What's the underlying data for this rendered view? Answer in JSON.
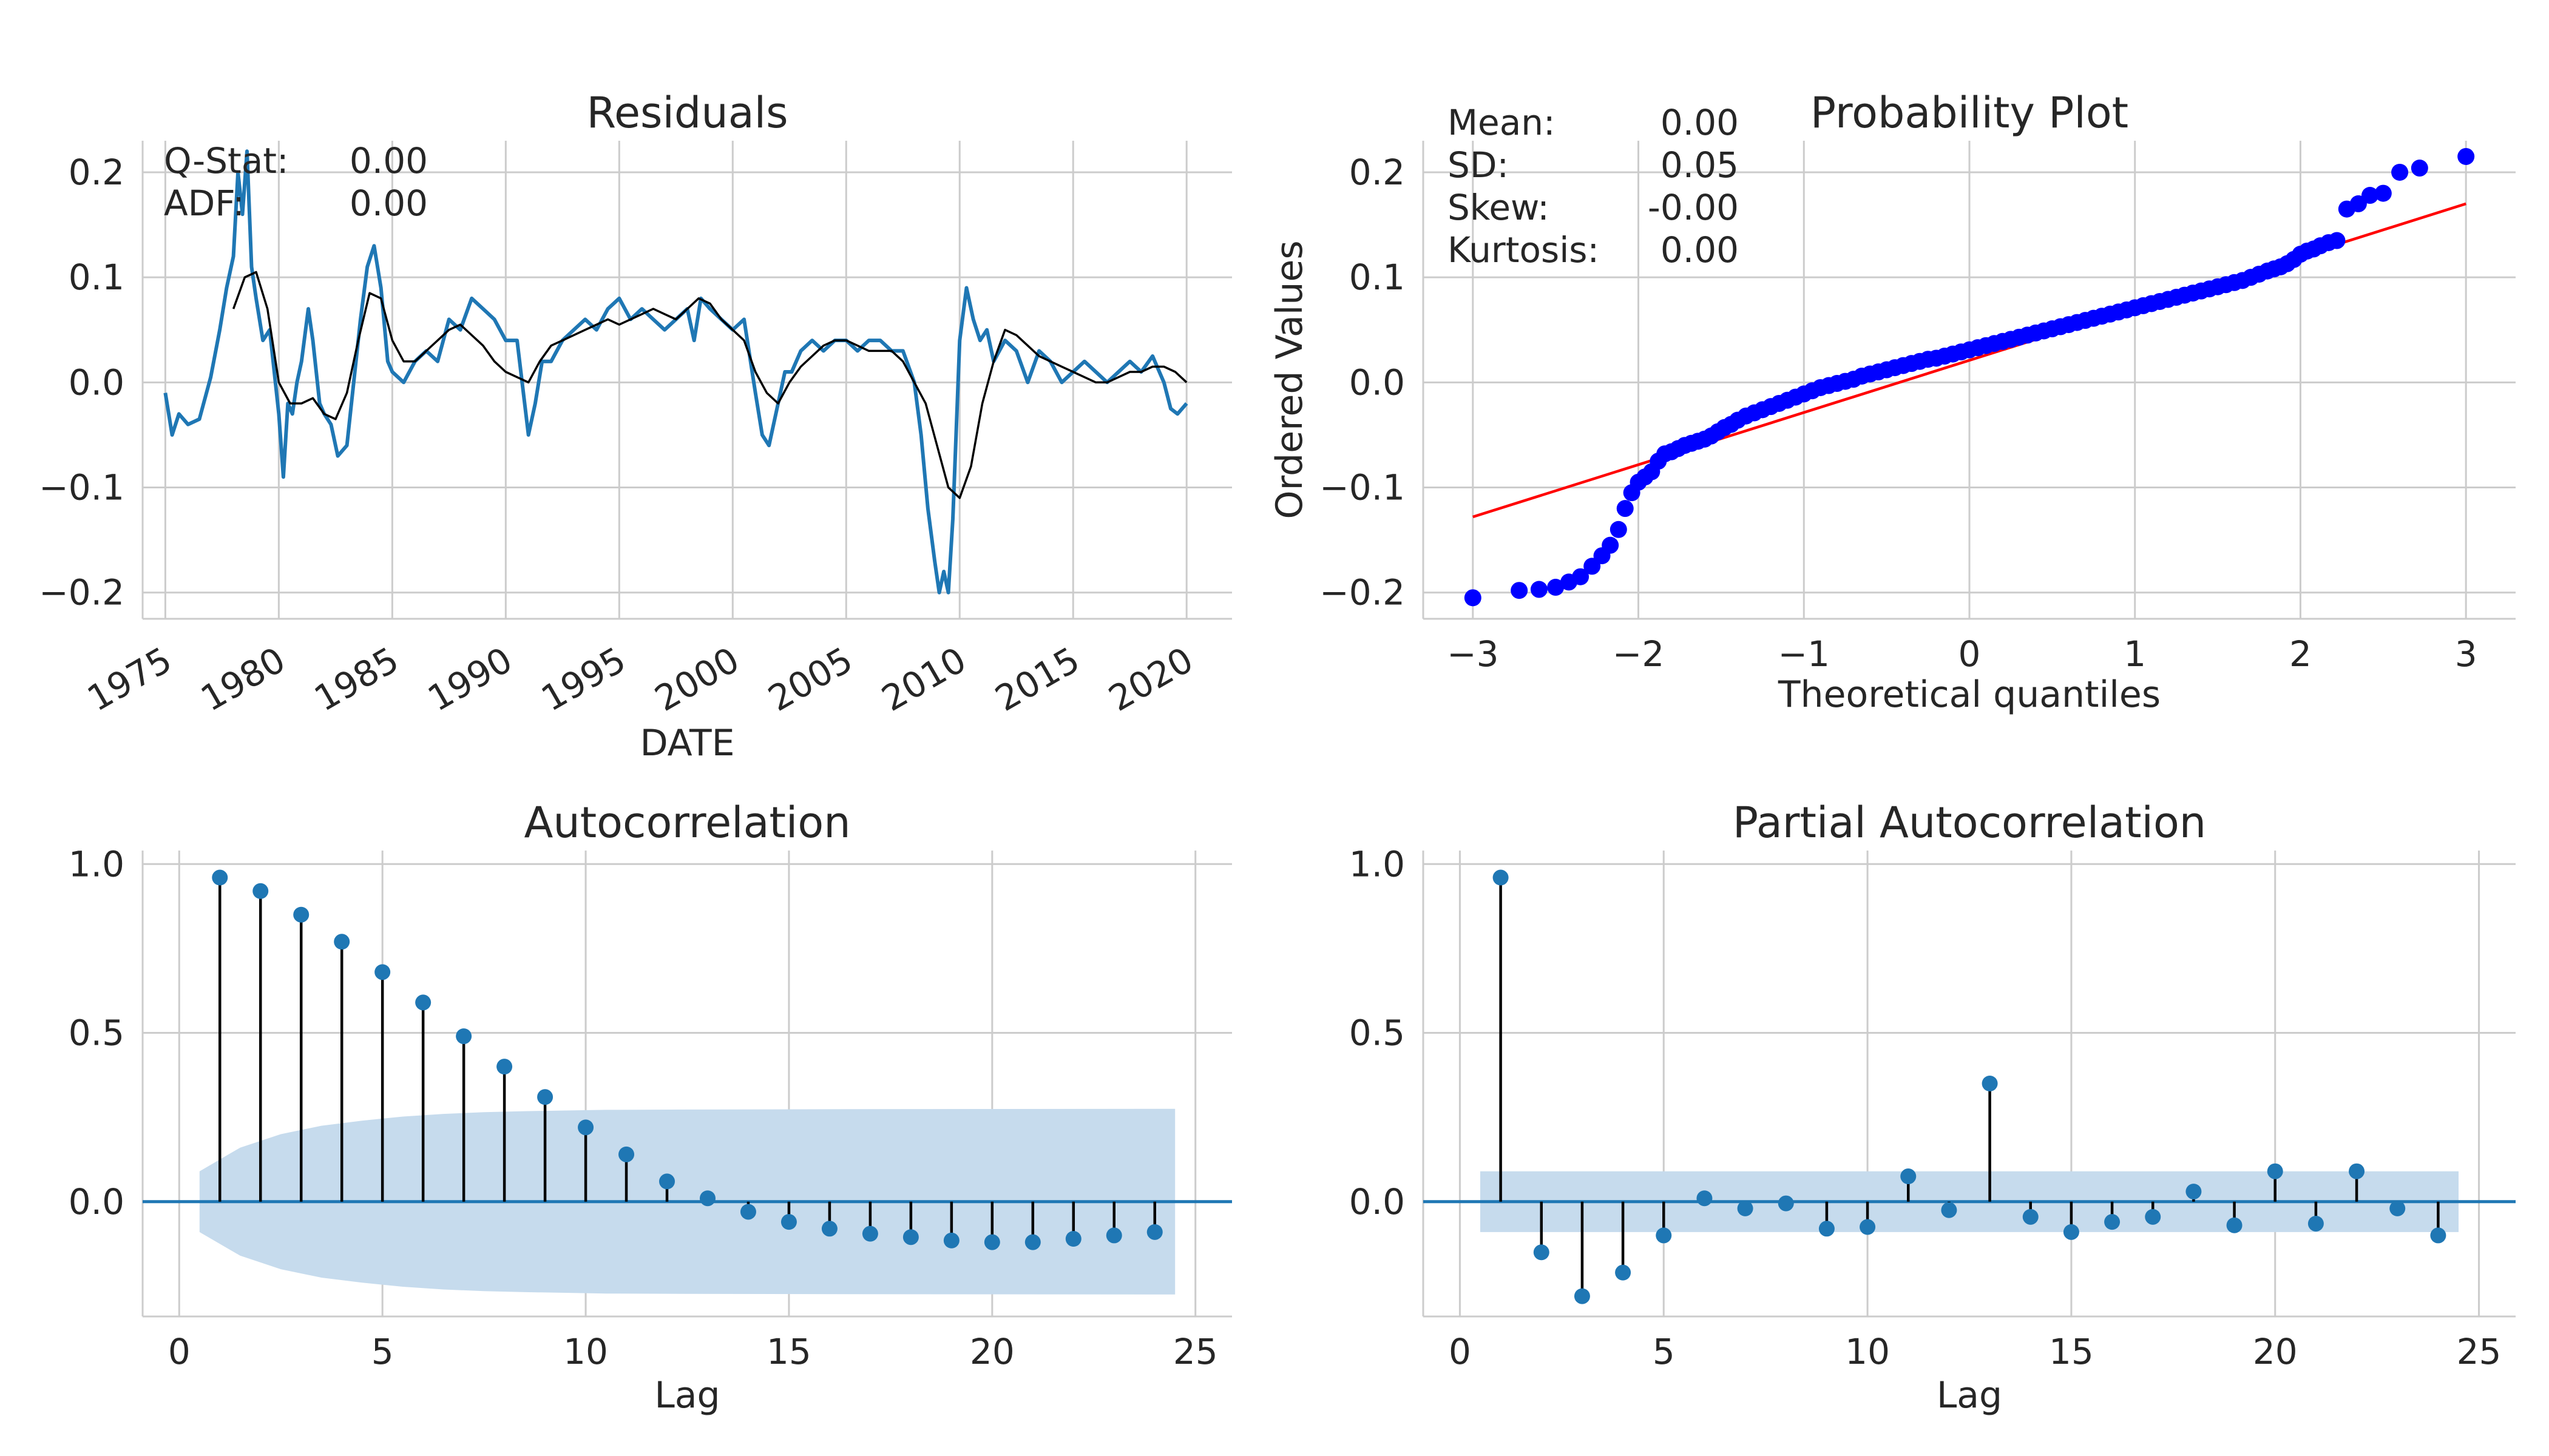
{
  "colors": {
    "series": "#1f77b4",
    "smooth": "#000000",
    "qq_points": "#0000ff",
    "qq_line": "#ff0000",
    "stem": "#000000",
    "band": "#c6dbed",
    "grid": "#cccccc",
    "axis": "#cccccc"
  },
  "chart_data": [
    {
      "type": "line",
      "title": "Residuals",
      "xlabel": "DATE",
      "ylabel": "",
      "xlim": [
        1974.0,
        2022.0
      ],
      "ylim": [
        -0.225,
        0.23
      ],
      "x_ticks": [
        1975,
        1980,
        1985,
        1990,
        1995,
        2000,
        2005,
        2010,
        2015,
        2020
      ],
      "x_tick_labels": [
        "1975",
        "1980",
        "1985",
        "1990",
        "1995",
        "2000",
        "2005",
        "2010",
        "2015",
        "2020"
      ],
      "y_ticks": [
        -0.2,
        -0.1,
        0.0,
        0.1,
        0.2
      ],
      "y_tick_labels": [
        "−0.2",
        "−0.1",
        "0.0",
        "0.1",
        "0.2"
      ],
      "grid": true,
      "annotations": [
        {
          "label": "Q-Stat:",
          "value": "0.00"
        },
        {
          "label": "ADF:",
          "value": "0.00"
        }
      ],
      "series": [
        {
          "values_x": [
            1975.0,
            1975.3,
            1975.6,
            1976.0,
            1976.5,
            1977.0,
            1977.4,
            1977.7,
            1978.0,
            1978.2,
            1978.4,
            1978.6,
            1978.8,
            1979.0,
            1979.3,
            1979.6,
            1980.0,
            1980.2,
            1980.4,
            1980.6,
            1980.8,
            1981.0,
            1981.3,
            1981.5,
            1981.8,
            1982.0,
            1982.3,
            1982.6,
            1983.0,
            1983.3,
            1983.6,
            1983.9,
            1984.2,
            1984.5,
            1984.8,
            1985.0,
            1985.5,
            1986.0,
            1986.5,
            1987.0,
            1987.5,
            1988.0,
            1988.5,
            1989.0,
            1989.5,
            1990.0,
            1990.5,
            1991.0,
            1991.3,
            1991.6,
            1992.0,
            1992.5,
            1993.0,
            1993.5,
            1994.0,
            1994.5,
            1995.0,
            1995.5,
            1996.0,
            1996.5,
            1997.0,
            1997.5,
            1998.0,
            1998.3,
            1998.6,
            1999.0,
            1999.5,
            2000.0,
            2000.5,
            2001.0,
            2001.3,
            2001.6,
            2002.0,
            2002.3,
            2002.6,
            2003.0,
            2003.5,
            2004.0,
            2004.5,
            2005.0,
            2005.5,
            2006.0,
            2006.5,
            2007.0,
            2007.5,
            2008.0,
            2008.3,
            2008.6,
            2008.9,
            2009.1,
            2009.3,
            2009.5,
            2009.7,
            2010.0,
            2010.3,
            2010.6,
            2010.9,
            2011.2,
            2011.5,
            2012.0,
            2012.5,
            2013.0,
            2013.5,
            2014.0,
            2014.5,
            2015.0,
            2015.5,
            2016.0,
            2016.5,
            2017.0,
            2017.5,
            2018.0,
            2018.5,
            2019.0,
            2019.3,
            2019.6,
            2020.0
          ],
          "values_y": [
            -0.01,
            -0.05,
            -0.03,
            -0.04,
            -0.035,
            0.005,
            0.05,
            0.09,
            0.12,
            0.2,
            0.16,
            0.22,
            0.11,
            0.08,
            0.04,
            0.05,
            -0.03,
            -0.09,
            -0.02,
            -0.03,
            0.0,
            0.02,
            0.07,
            0.04,
            -0.02,
            -0.03,
            -0.04,
            -0.07,
            -0.06,
            0.0,
            0.06,
            0.11,
            0.13,
            0.09,
            0.02,
            0.01,
            0.0,
            0.02,
            0.03,
            0.02,
            0.06,
            0.05,
            0.08,
            0.07,
            0.06,
            0.04,
            0.04,
            -0.05,
            -0.02,
            0.02,
            0.02,
            0.04,
            0.05,
            0.06,
            0.05,
            0.07,
            0.08,
            0.06,
            0.07,
            0.06,
            0.05,
            0.06,
            0.07,
            0.04,
            0.08,
            0.07,
            0.06,
            0.05,
            0.06,
            -0.01,
            -0.05,
            -0.06,
            -0.02,
            0.01,
            0.01,
            0.03,
            0.04,
            0.03,
            0.04,
            0.04,
            0.03,
            0.04,
            0.04,
            0.03,
            0.03,
            0.0,
            -0.05,
            -0.12,
            -0.17,
            -0.2,
            -0.18,
            -0.2,
            -0.13,
            0.04,
            0.09,
            0.06,
            0.04,
            0.05,
            0.02,
            0.04,
            0.03,
            0.0,
            0.03,
            0.02,
            0.0,
            0.01,
            0.02,
            0.01,
            0.0,
            0.01,
            0.02,
            0.01,
            0.025,
            0.0,
            -0.025,
            -0.03,
            -0.02
          ]
        },
        {
          "values_x": [
            1978.0,
            1978.5,
            1979.0,
            1979.5,
            1980.0,
            1980.5,
            1981.0,
            1981.5,
            1982.0,
            1982.5,
            1983.0,
            1983.5,
            1984.0,
            1984.5,
            1985.0,
            1985.5,
            1986.0,
            1986.5,
            1987.0,
            1987.5,
            1988.0,
            1988.5,
            1989.0,
            1989.5,
            1990.0,
            1990.5,
            1991.0,
            1991.5,
            1992.0,
            1992.5,
            1993.0,
            1993.5,
            1994.0,
            1994.5,
            1995.0,
            1995.5,
            1996.0,
            1996.5,
            1997.0,
            1997.5,
            1998.0,
            1998.5,
            1999.0,
            1999.5,
            2000.0,
            2000.5,
            2001.0,
            2001.5,
            2002.0,
            2002.5,
            2003.0,
            2003.5,
            2004.0,
            2004.5,
            2005.0,
            2005.5,
            2006.0,
            2006.5,
            2007.0,
            2007.5,
            2008.0,
            2008.5,
            2009.0,
            2009.5,
            2010.0,
            2010.5,
            2011.0,
            2011.5,
            2012.0,
            2012.5,
            2013.0,
            2013.5,
            2014.0,
            2014.5,
            2015.0,
            2015.5,
            2016.0,
            2016.5,
            2017.0,
            2017.5,
            2018.0,
            2018.5,
            2019.0,
            2019.5,
            2020.0
          ],
          "values_y": [
            0.07,
            0.1,
            0.105,
            0.07,
            0.0,
            -0.02,
            -0.02,
            -0.015,
            -0.03,
            -0.035,
            -0.01,
            0.04,
            0.085,
            0.08,
            0.04,
            0.02,
            0.02,
            0.03,
            0.04,
            0.05,
            0.055,
            0.045,
            0.035,
            0.02,
            0.01,
            0.005,
            0.0,
            0.02,
            0.035,
            0.04,
            0.045,
            0.05,
            0.055,
            0.06,
            0.055,
            0.06,
            0.065,
            0.07,
            0.065,
            0.06,
            0.07,
            0.08,
            0.075,
            0.06,
            0.05,
            0.04,
            0.01,
            -0.01,
            -0.02,
            0.0,
            0.015,
            0.025,
            0.035,
            0.04,
            0.04,
            0.035,
            0.03,
            0.03,
            0.03,
            0.02,
            0.0,
            -0.02,
            -0.06,
            -0.1,
            -0.11,
            -0.08,
            -0.02,
            0.02,
            0.05,
            0.045,
            0.035,
            0.025,
            0.02,
            0.015,
            0.01,
            0.005,
            0.0,
            0.0,
            0.005,
            0.01,
            0.01,
            0.015,
            0.015,
            0.01,
            0.0
          ]
        }
      ]
    },
    {
      "type": "scatter",
      "title": "Probability Plot",
      "xlabel": "Theoretical quantiles",
      "ylabel": "Ordered Values",
      "xlim": [
        -3.3,
        3.3
      ],
      "ylim": [
        -0.225,
        0.23
      ],
      "x_ticks": [
        -3,
        -2,
        -1,
        0,
        1,
        2,
        3
      ],
      "x_tick_labels": [
        "−3",
        "−2",
        "−1",
        "0",
        "1",
        "2",
        "3"
      ],
      "y_ticks": [
        -0.2,
        -0.1,
        0.0,
        0.1,
        0.2
      ],
      "y_tick_labels": [
        "−0.2",
        "−0.1",
        "0.0",
        "0.1",
        "0.2"
      ],
      "grid": true,
      "annotations": [
        {
          "label": "Mean:",
          "value": "0.00"
        },
        {
          "label": "SD:",
          "value": "0.05"
        },
        {
          "label": "Skew:",
          "value": "-0.00"
        },
        {
          "label": "Kurtosis:",
          "value": "0.00"
        }
      ],
      "fit_line": {
        "x": [
          -3.0,
          3.0
        ],
        "y": [
          -0.128,
          0.17
        ]
      },
      "points_x": [
        -3.0,
        -2.72,
        -2.6,
        -2.5,
        -2.42,
        -2.35,
        -2.28,
        -2.22,
        -2.17,
        -2.12,
        -2.08,
        -2.04,
        -2.0,
        -1.96,
        -1.92,
        -1.88,
        -1.84,
        -1.8,
        -1.76,
        -1.72,
        -1.68,
        -1.64,
        -1.6,
        -1.56,
        -1.52,
        -1.48,
        -1.44,
        -1.4,
        -1.35,
        -1.3,
        -1.25,
        -1.2,
        -1.15,
        -1.1,
        -1.05,
        -1.0,
        -0.95,
        -0.9,
        -0.85,
        -0.8,
        -0.75,
        -0.7,
        -0.65,
        -0.6,
        -0.55,
        -0.5,
        -0.45,
        -0.4,
        -0.35,
        -0.3,
        -0.25,
        -0.2,
        -0.15,
        -0.1,
        -0.05,
        0.0,
        0.05,
        0.1,
        0.15,
        0.2,
        0.25,
        0.3,
        0.35,
        0.4,
        0.45,
        0.5,
        0.55,
        0.6,
        0.65,
        0.7,
        0.75,
        0.8,
        0.85,
        0.9,
        0.95,
        1.0,
        1.05,
        1.1,
        1.15,
        1.2,
        1.25,
        1.3,
        1.35,
        1.4,
        1.45,
        1.5,
        1.55,
        1.6,
        1.65,
        1.7,
        1.75,
        1.8,
        1.84,
        1.88,
        1.92,
        1.96,
        2.0,
        2.04,
        2.08,
        2.12,
        2.17,
        2.22,
        2.28,
        2.35,
        2.42,
        2.5,
        2.6,
        2.72,
        3.0
      ],
      "points_y": [
        -0.205,
        -0.198,
        -0.197,
        -0.195,
        -0.19,
        -0.185,
        -0.175,
        -0.165,
        -0.155,
        -0.14,
        -0.12,
        -0.105,
        -0.095,
        -0.09,
        -0.085,
        -0.075,
        -0.068,
        -0.066,
        -0.063,
        -0.06,
        -0.058,
        -0.056,
        -0.054,
        -0.051,
        -0.047,
        -0.043,
        -0.04,
        -0.036,
        -0.032,
        -0.029,
        -0.026,
        -0.023,
        -0.02,
        -0.017,
        -0.014,
        -0.011,
        -0.008,
        -0.005,
        -0.003,
        -0.001,
        0.001,
        0.003,
        0.006,
        0.008,
        0.01,
        0.012,
        0.014,
        0.016,
        0.018,
        0.02,
        0.022,
        0.023,
        0.025,
        0.027,
        0.029,
        0.031,
        0.033,
        0.035,
        0.037,
        0.039,
        0.041,
        0.043,
        0.045,
        0.047,
        0.049,
        0.051,
        0.053,
        0.055,
        0.057,
        0.059,
        0.061,
        0.063,
        0.065,
        0.067,
        0.069,
        0.071,
        0.073,
        0.075,
        0.077,
        0.079,
        0.081,
        0.083,
        0.085,
        0.087,
        0.089,
        0.091,
        0.093,
        0.095,
        0.097,
        0.1,
        0.103,
        0.106,
        0.108,
        0.11,
        0.113,
        0.117,
        0.122,
        0.125,
        0.127,
        0.13,
        0.133,
        0.135,
        0.165,
        0.17,
        0.178,
        0.18,
        0.2,
        0.204,
        0.215
      ]
    },
    {
      "type": "bar",
      "title": "Autocorrelation",
      "xlabel": "Lag",
      "ylabel": "",
      "xlim": [
        -0.9,
        25.9
      ],
      "ylim": [
        -0.34,
        1.04
      ],
      "x_ticks": [
        0,
        5,
        10,
        15,
        20,
        25
      ],
      "x_tick_labels": [
        "0",
        "5",
        "10",
        "15",
        "20",
        "25"
      ],
      "y_ticks": [
        0.0,
        0.5,
        1.0
      ],
      "y_tick_labels": [
        "0.0",
        "0.5",
        "1.0"
      ],
      "grid": true,
      "lags": [
        1,
        2,
        3,
        4,
        5,
        6,
        7,
        8,
        9,
        10,
        11,
        12,
        13,
        14,
        15,
        16,
        17,
        18,
        19,
        20,
        21,
        22,
        23,
        24
      ],
      "values": [
        0.96,
        0.92,
        0.85,
        0.77,
        0.68,
        0.59,
        0.49,
        0.4,
        0.31,
        0.22,
        0.14,
        0.06,
        0.01,
        -0.03,
        -0.06,
        -0.08,
        -0.095,
        -0.105,
        -0.115,
        -0.12,
        -0.12,
        -0.11,
        -0.1,
        -0.09
      ],
      "confidence_band": {
        "x": [
          0.5,
          1.5,
          2.5,
          3.5,
          4.5,
          5.5,
          6.5,
          7.5,
          8.5,
          9.5,
          10.5,
          12.5,
          16.5,
          24.5
        ],
        "upper": [
          0.09,
          0.16,
          0.2,
          0.225,
          0.24,
          0.252,
          0.26,
          0.265,
          0.268,
          0.27,
          0.272,
          0.273,
          0.274,
          0.275
        ],
        "lower": [
          -0.09,
          -0.16,
          -0.2,
          -0.225,
          -0.24,
          -0.252,
          -0.26,
          -0.265,
          -0.268,
          -0.27,
          -0.272,
          -0.273,
          -0.274,
          -0.275
        ]
      }
    },
    {
      "type": "bar",
      "title": "Partial Autocorrelation",
      "xlabel": "Lag",
      "ylabel": "",
      "xlim": [
        -0.9,
        25.9
      ],
      "ylim": [
        -0.34,
        1.04
      ],
      "x_ticks": [
        0,
        5,
        10,
        15,
        20,
        25
      ],
      "x_tick_labels": [
        "0",
        "5",
        "10",
        "15",
        "20",
        "25"
      ],
      "y_ticks": [
        0.0,
        0.5,
        1.0
      ],
      "y_tick_labels": [
        "0.0",
        "0.5",
        "1.0"
      ],
      "grid": true,
      "lags": [
        1,
        2,
        3,
        4,
        5,
        6,
        7,
        8,
        9,
        10,
        11,
        12,
        13,
        14,
        15,
        16,
        17,
        18,
        19,
        20,
        21,
        22,
        23,
        24
      ],
      "values": [
        0.96,
        -0.15,
        -0.28,
        -0.21,
        -0.1,
        0.01,
        -0.02,
        -0.005,
        -0.08,
        -0.075,
        0.075,
        -0.025,
        0.35,
        -0.045,
        -0.09,
        -0.06,
        -0.045,
        0.03,
        -0.07,
        0.09,
        -0.065,
        0.09,
        -0.02,
        -0.1
      ],
      "confidence_band": {
        "x": [
          0.5,
          24.5
        ],
        "upper": [
          0.09,
          0.09
        ],
        "lower": [
          -0.09,
          -0.09
        ]
      }
    }
  ]
}
